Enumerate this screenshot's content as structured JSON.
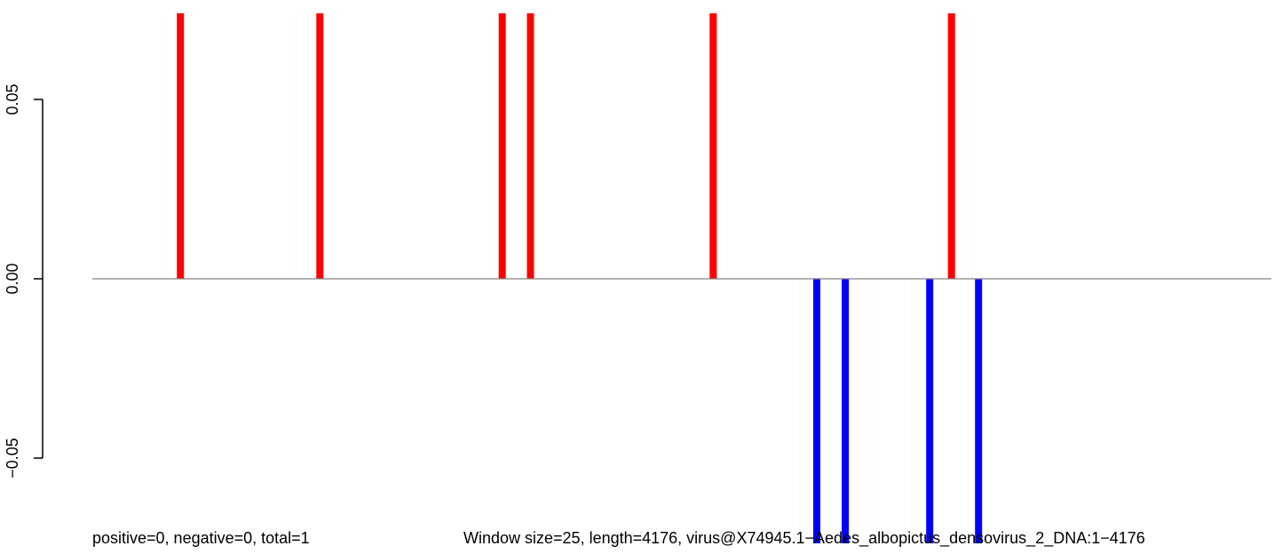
{
  "captions": {
    "left": "positive=0, negative=0, total=1",
    "right": "Window size=25, length=4176, virus@X74945.1−Aedes_albopictus_densovirus_2_DNA:1−4176"
  },
  "chart_data": {
    "type": "bar",
    "title": "",
    "xlabel": "",
    "ylabel": "",
    "xlim": [
      0,
      4176
    ],
    "ylim": [
      -0.06,
      0.06
    ],
    "yticks": [
      -0.05,
      0.0,
      0.05
    ],
    "ytick_labels": [
      "−0.05",
      "0.00",
      "0.05"
    ],
    "baseline": 0,
    "grid": false,
    "legend": "none",
    "colors": {
      "positive": "#ff0000",
      "negative": "#0000ff",
      "baseline": "#808080"
    },
    "series": [
      {
        "color": "#ff0000",
        "x": [
          312,
          806,
          1452,
          1552,
          2199,
          3043
        ],
        "values": [
          0.075,
          0.075,
          0.075,
          0.075,
          0.075,
          0.075
        ]
      },
      {
        "color": "#0000ff",
        "x": [
          2566,
          2667,
          2966,
          3139
        ],
        "values": [
          -0.075,
          -0.075,
          -0.075,
          -0.075
        ]
      }
    ]
  }
}
